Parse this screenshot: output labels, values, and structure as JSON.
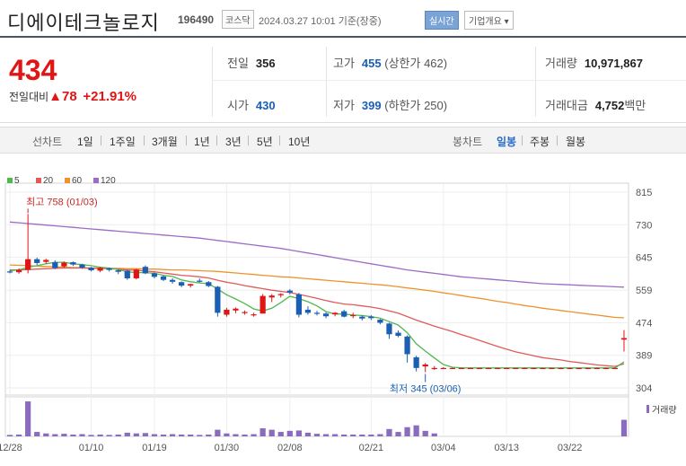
{
  "header": {
    "name": "디에이테크놀로지",
    "code": "196490",
    "market": "코스닥",
    "timestamp": "2024.03.27 10:01  기준(장중)",
    "realtime_label": "실시간",
    "company_info_label": "기업개요 ▾"
  },
  "quote": {
    "price": "434",
    "change_label": "전일대비",
    "change_value": "▲78",
    "change_pct": "+21.91%",
    "prev_label": "전일",
    "prev_value": "356",
    "high_label": "고가",
    "high_value": "455",
    "upper_limit": "(상한가 462)",
    "volume_label": "거래량",
    "volume_value": "10,971,867",
    "open_label": "시가",
    "open_value": "430",
    "low_label": "저가",
    "low_value": "399",
    "lower_limit": "(하한가 250)",
    "amount_label": "거래대금",
    "amount_value": "4,752",
    "amount_unit": "백만"
  },
  "periods": {
    "line_label": "선차트",
    "line_items": [
      "1일",
      "1주일",
      "3개월",
      "1년",
      "3년",
      "5년",
      "10년"
    ],
    "candle_label": "봉차트",
    "candle_items": [
      "일봉",
      "주봉",
      "월봉"
    ],
    "candle_selected": "일봉"
  },
  "colors": {
    "up": "#e01515",
    "down": "#1a5fb4",
    "ma5": "#4fb84f",
    "ma20": "#e05a5a",
    "ma60": "#f0922b",
    "ma120": "#9b6bc6"
  },
  "chart_data": {
    "type": "candlestick",
    "legend": [
      "5",
      "20",
      "60",
      "120"
    ],
    "y_ticks": [
      815,
      730,
      645,
      559,
      474,
      389,
      304
    ],
    "ylim": [
      304,
      815
    ],
    "x_ticks": [
      "12/28",
      "01/10",
      "01/19",
      "01/30",
      "02/08",
      "02/21",
      "03/04",
      "03/13",
      "03/22"
    ],
    "high_annotation": "최고 758 (01/03)",
    "low_annotation": "최저 345 (03/06)",
    "volume_label": "거래량",
    "candles": [
      {
        "o": 608,
        "h": 612,
        "l": 603,
        "c": 606
      },
      {
        "o": 606,
        "h": 616,
        "l": 602,
        "c": 612
      },
      {
        "o": 612,
        "h": 758,
        "l": 603,
        "c": 640
      },
      {
        "o": 640,
        "h": 644,
        "l": 625,
        "c": 630
      },
      {
        "o": 633,
        "h": 641,
        "l": 628,
        "c": 638
      },
      {
        "o": 632,
        "h": 637,
        "l": 614,
        "c": 617
      },
      {
        "o": 621,
        "h": 634,
        "l": 618,
        "c": 631
      },
      {
        "o": 632,
        "h": 634,
        "l": 622,
        "c": 626
      },
      {
        "o": 626,
        "h": 628,
        "l": 615,
        "c": 618
      },
      {
        "o": 618,
        "h": 620,
        "l": 608,
        "c": 611
      },
      {
        "o": 610,
        "h": 620,
        "l": 606,
        "c": 617
      },
      {
        "o": 616,
        "h": 618,
        "l": 608,
        "c": 612
      },
      {
        "o": 611,
        "h": 613,
        "l": 601,
        "c": 607
      },
      {
        "o": 610,
        "h": 612,
        "l": 586,
        "c": 590
      },
      {
        "o": 590,
        "h": 615,
        "l": 587,
        "c": 613
      },
      {
        "o": 620,
        "h": 624,
        "l": 601,
        "c": 603
      },
      {
        "o": 603,
        "h": 605,
        "l": 590,
        "c": 594
      },
      {
        "o": 595,
        "h": 598,
        "l": 583,
        "c": 586
      },
      {
        "o": 586,
        "h": 590,
        "l": 576,
        "c": 581
      },
      {
        "o": 580,
        "h": 582,
        "l": 567,
        "c": 571
      },
      {
        "o": 571,
        "h": 576,
        "l": 566,
        "c": 575
      },
      {
        "o": 584,
        "h": 590,
        "l": 579,
        "c": 581
      },
      {
        "o": 580,
        "h": 583,
        "l": 567,
        "c": 570
      },
      {
        "o": 568,
        "h": 570,
        "l": 490,
        "c": 500
      },
      {
        "o": 495,
        "h": 513,
        "l": 490,
        "c": 508
      },
      {
        "o": 506,
        "h": 514,
        "l": 499,
        "c": 511
      },
      {
        "o": 500,
        "h": 506,
        "l": 495,
        "c": 502
      },
      {
        "o": 494,
        "h": 500,
        "l": 490,
        "c": 496
      },
      {
        "o": 498,
        "h": 549,
        "l": 498,
        "c": 544
      },
      {
        "o": 540,
        "h": 549,
        "l": 528,
        "c": 545
      },
      {
        "o": 546,
        "h": 551,
        "l": 540,
        "c": 549
      },
      {
        "o": 558,
        "h": 562,
        "l": 548,
        "c": 553
      },
      {
        "o": 548,
        "h": 552,
        "l": 488,
        "c": 495
      },
      {
        "o": 508,
        "h": 517,
        "l": 495,
        "c": 500
      },
      {
        "o": 500,
        "h": 505,
        "l": 493,
        "c": 498
      },
      {
        "o": 498,
        "h": 501,
        "l": 486,
        "c": 491
      },
      {
        "o": 496,
        "h": 502,
        "l": 491,
        "c": 500
      },
      {
        "o": 504,
        "h": 508,
        "l": 488,
        "c": 490
      },
      {
        "o": 492,
        "h": 500,
        "l": 486,
        "c": 494
      },
      {
        "o": 490,
        "h": 493,
        "l": 480,
        "c": 485
      },
      {
        "o": 490,
        "h": 494,
        "l": 481,
        "c": 486
      },
      {
        "o": 482,
        "h": 484,
        "l": 470,
        "c": 474
      },
      {
        "o": 472,
        "h": 474,
        "l": 432,
        "c": 444
      },
      {
        "o": 448,
        "h": 454,
        "l": 436,
        "c": 440
      },
      {
        "o": 438,
        "h": 441,
        "l": 370,
        "c": 392
      },
      {
        "o": 384,
        "h": 388,
        "l": 347,
        "c": 356
      },
      {
        "o": 360,
        "h": 369,
        "l": 345,
        "c": 365
      },
      {
        "o": 355,
        "h": 361,
        "l": 351,
        "c": 356
      },
      {
        "o": 356,
        "h": 358,
        "l": 354,
        "c": 356
      },
      {
        "o": 356,
        "h": 357,
        "l": 355,
        "c": 356
      },
      {
        "o": 356,
        "h": 357,
        "l": 355,
        "c": 356
      },
      {
        "o": 356,
        "h": 357,
        "l": 355,
        "c": 356
      },
      {
        "o": 356,
        "h": 357,
        "l": 355,
        "c": 356
      },
      {
        "o": 356,
        "h": 357,
        "l": 355,
        "c": 356
      },
      {
        "o": 356,
        "h": 357,
        "l": 355,
        "c": 356
      },
      {
        "o": 356,
        "h": 357,
        "l": 355,
        "c": 356
      },
      {
        "o": 356,
        "h": 357,
        "l": 355,
        "c": 356
      },
      {
        "o": 356,
        "h": 357,
        "l": 355,
        "c": 356
      },
      {
        "o": 356,
        "h": 357,
        "l": 355,
        "c": 356
      },
      {
        "o": 356,
        "h": 357,
        "l": 355,
        "c": 356
      },
      {
        "o": 356,
        "h": 357,
        "l": 355,
        "c": 356
      },
      {
        "o": 356,
        "h": 357,
        "l": 355,
        "c": 356
      },
      {
        "o": 356,
        "h": 357,
        "l": 355,
        "c": 356
      },
      {
        "o": 356,
        "h": 357,
        "l": 355,
        "c": 356
      },
      {
        "o": 356,
        "h": 357,
        "l": 355,
        "c": 356
      },
      {
        "o": 356,
        "h": 357,
        "l": 355,
        "c": 356
      },
      {
        "o": 356,
        "h": 357,
        "l": 355,
        "c": 356
      },
      {
        "o": 356,
        "h": 357,
        "l": 355,
        "c": 356
      },
      {
        "o": 430,
        "h": 455,
        "l": 399,
        "c": 434
      }
    ],
    "volume_rel": [
      0.04,
      0.05,
      0.95,
      0.12,
      0.08,
      0.06,
      0.07,
      0.05,
      0.06,
      0.04,
      0.05,
      0.04,
      0.05,
      0.1,
      0.08,
      0.09,
      0.06,
      0.05,
      0.06,
      0.05,
      0.05,
      0.04,
      0.05,
      0.18,
      0.08,
      0.06,
      0.05,
      0.06,
      0.22,
      0.18,
      0.12,
      0.15,
      0.16,
      0.1,
      0.07,
      0.06,
      0.06,
      0.05,
      0.05,
      0.05,
      0.05,
      0.06,
      0.2,
      0.12,
      0.25,
      0.3,
      0.15,
      0.08,
      0,
      0,
      0,
      0,
      0,
      0,
      0,
      0,
      0,
      0,
      0,
      0,
      0,
      0,
      0,
      0,
      0,
      0,
      0,
      0,
      0.45
    ],
    "ma5": [
      610,
      612,
      619,
      623,
      628,
      632,
      632,
      628,
      626,
      623,
      619,
      617,
      613,
      607,
      605,
      605,
      603,
      598,
      595,
      586,
      581,
      578,
      576,
      562,
      547,
      536,
      524,
      510,
      505,
      512,
      527,
      543,
      537,
      529,
      518,
      503,
      497,
      497,
      494,
      493,
      490,
      486,
      477,
      468,
      448,
      419,
      400,
      382,
      365,
      358,
      356,
      356,
      356,
      356,
      356,
      356,
      356,
      356,
      356,
      356,
      356,
      356,
      356,
      356,
      356,
      356,
      356,
      356,
      372
    ],
    "ma20": [
      612,
      612,
      613,
      614,
      615,
      616,
      617,
      617,
      617,
      616,
      616,
      615,
      614,
      612,
      611,
      609,
      607,
      604,
      601,
      598,
      596,
      594,
      591,
      585,
      580,
      576,
      571,
      567,
      563,
      559,
      556,
      553,
      548,
      543,
      538,
      532,
      527,
      523,
      521,
      518,
      515,
      511,
      505,
      499,
      490,
      481,
      473,
      465,
      458,
      451,
      443,
      436,
      428,
      420,
      412,
      405,
      398,
      393,
      388,
      383,
      380,
      377,
      373,
      370,
      367,
      364,
      362,
      360,
      367
    ],
    "ma60": [
      625,
      624,
      623,
      622,
      621,
      620,
      619,
      618,
      618,
      617,
      617,
      616,
      616,
      615,
      615,
      614,
      614,
      613,
      612,
      612,
      611,
      610,
      609,
      608,
      606,
      604,
      602,
      600,
      598,
      596,
      594,
      593,
      591,
      589,
      587,
      585,
      583,
      581,
      579,
      577,
      575,
      573,
      571,
      568,
      565,
      562,
      559,
      556,
      552,
      549,
      545,
      541,
      538,
      534,
      530,
      527,
      523,
      519,
      516,
      512,
      509,
      506,
      503,
      500,
      497,
      494,
      491,
      488,
      487
    ],
    "ma120": [
      737,
      735,
      733,
      731,
      729,
      727,
      725,
      723,
      721,
      719,
      717,
      715,
      713,
      711,
      709,
      707,
      705,
      703,
      701,
      699,
      697,
      695,
      692,
      689,
      686,
      683,
      680,
      677,
      674,
      671,
      668,
      664,
      660,
      656,
      652,
      648,
      644,
      640,
      636,
      632,
      628,
      624,
      620,
      616,
      612,
      609,
      606,
      603,
      600,
      597,
      594,
      592,
      590,
      588,
      586,
      584,
      582,
      580,
      578,
      576,
      575,
      574,
      573,
      572,
      571,
      570,
      569,
      568,
      567
    ]
  }
}
